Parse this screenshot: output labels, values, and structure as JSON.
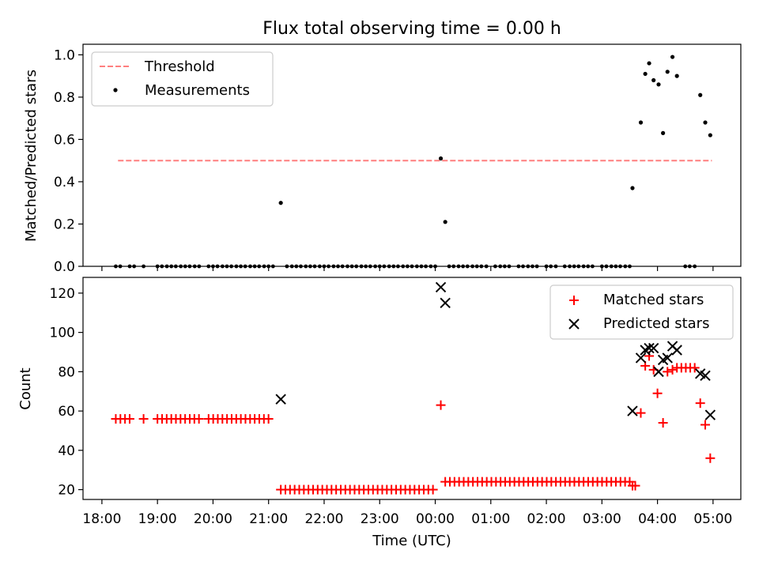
{
  "chart_data": [
    {
      "type": "scatter",
      "title": "Flux total observing time = 0.00 h",
      "ylabel": "Matched/Predicted stars",
      "xlabel": "",
      "x_unit": "hours since 18:00 UTC",
      "xlim": [
        17.66,
        29.5
      ],
      "ylim": [
        0,
        1.05
      ],
      "yticks": [
        0.0,
        0.2,
        0.4,
        0.6,
        0.8,
        1.0
      ],
      "ytick_labels": [
        "0.0",
        "0.2",
        "0.4",
        "0.6",
        "0.8",
        "1.0"
      ],
      "grid": false,
      "legend_position": "top-left",
      "threshold": {
        "name": "Threshold",
        "color": "#ff7f7f",
        "y": 0.5,
        "x": [
          18.29,
          28.98
        ]
      },
      "measurements": {
        "name": "Measurements",
        "color": "#000000",
        "zeros_x": [
          18.25,
          18.33,
          18.5,
          18.58,
          18.75,
          19.0,
          19.08,
          19.17,
          19.25,
          19.33,
          19.42,
          19.5,
          19.58,
          19.67,
          19.75,
          19.92,
          20.0,
          20.08,
          20.17,
          20.25,
          20.33,
          20.42,
          20.5,
          20.58,
          20.67,
          20.75,
          20.83,
          20.92,
          21.0,
          21.08,
          21.33,
          21.42,
          21.5,
          21.58,
          21.67,
          21.75,
          21.83,
          21.92,
          22.0,
          22.08,
          22.17,
          22.25,
          22.33,
          22.42,
          22.5,
          22.58,
          22.67,
          22.75,
          22.83,
          22.92,
          23.0,
          23.08,
          23.17,
          23.25,
          23.33,
          23.42,
          23.5,
          23.58,
          23.67,
          23.75,
          23.83,
          23.92,
          24.0,
          24.25,
          24.33,
          24.42,
          24.5,
          24.58,
          24.67,
          24.75,
          24.83,
          24.92,
          25.08,
          25.17,
          25.25,
          25.33,
          25.5,
          25.58,
          25.67,
          25.75,
          25.83,
          26.0,
          26.08,
          26.17,
          26.33,
          26.42,
          26.5,
          26.58,
          26.67,
          26.75,
          26.83,
          27.0,
          27.08,
          27.17,
          27.25,
          27.33,
          27.42,
          27.5,
          28.5,
          28.58,
          28.67
        ],
        "points": [
          {
            "x": 21.22,
            "y": 0.3
          },
          {
            "x": 24.1,
            "y": 0.51
          },
          {
            "x": 24.18,
            "y": 0.21
          },
          {
            "x": 27.55,
            "y": 0.37
          },
          {
            "x": 27.7,
            "y": 0.68
          },
          {
            "x": 27.78,
            "y": 0.91
          },
          {
            "x": 27.85,
            "y": 0.96
          },
          {
            "x": 27.93,
            "y": 0.88
          },
          {
            "x": 28.02,
            "y": 0.86
          },
          {
            "x": 28.1,
            "y": 0.63
          },
          {
            "x": 28.18,
            "y": 0.92
          },
          {
            "x": 28.27,
            "y": 0.99
          },
          {
            "x": 28.35,
            "y": 0.9
          },
          {
            "x": 28.77,
            "y": 0.81
          },
          {
            "x": 28.86,
            "y": 0.68
          },
          {
            "x": 28.95,
            "y": 0.62
          }
        ]
      }
    },
    {
      "type": "scatter",
      "title": "",
      "ylabel": "Count",
      "xlabel": "Time (UTC)",
      "x_unit": "hours since 18:00 UTC",
      "xlim": [
        17.66,
        29.5
      ],
      "ylim": [
        15,
        128
      ],
      "yticks": [
        20,
        40,
        60,
        80,
        100,
        120
      ],
      "ytick_labels": [
        "20",
        "40",
        "60",
        "80",
        "100",
        "120"
      ],
      "xticks": [
        18,
        19,
        20,
        21,
        22,
        23,
        24,
        25,
        26,
        27,
        28,
        29
      ],
      "xtick_labels": [
        "18:00",
        "19:00",
        "20:00",
        "21:00",
        "22:00",
        "23:00",
        "00:00",
        "01:00",
        "02:00",
        "03:00",
        "04:00",
        "05:00"
      ],
      "grid": false,
      "legend_position": "top-right",
      "series": [
        {
          "name": "Matched stars",
          "color": "#ff0000",
          "marker": "plus",
          "runs": [
            {
              "from": 18.25,
              "to": 18.5,
              "step": 0.083,
              "y": 56
            },
            {
              "from": 18.75,
              "to": 18.75,
              "step": 0.083,
              "y": 56
            },
            {
              "from": 19.0,
              "to": 19.75,
              "step": 0.083,
              "y": 56
            },
            {
              "from": 19.92,
              "to": 21.08,
              "step": 0.083,
              "y": 56
            },
            {
              "from": 21.22,
              "to": 24.0,
              "step": 0.083,
              "y": 20
            },
            {
              "from": 24.18,
              "to": 27.5,
              "step": 0.083,
              "y": 24
            },
            {
              "from": 27.55,
              "to": 27.6,
              "step": 0.05,
              "y": 22
            }
          ],
          "points": [
            {
              "x": 24.1,
              "y": 63
            },
            {
              "x": 27.7,
              "y": 59
            },
            {
              "x": 27.78,
              "y": 83
            },
            {
              "x": 27.85,
              "y": 88
            },
            {
              "x": 27.93,
              "y": 81
            },
            {
              "x": 28.0,
              "y": 69
            },
            {
              "x": 28.1,
              "y": 54
            },
            {
              "x": 28.18,
              "y": 80
            },
            {
              "x": 28.27,
              "y": 81
            },
            {
              "x": 28.35,
              "y": 82
            },
            {
              "x": 28.43,
              "y": 82
            },
            {
              "x": 28.51,
              "y": 82
            },
            {
              "x": 28.59,
              "y": 82
            },
            {
              "x": 28.67,
              "y": 82
            },
            {
              "x": 28.77,
              "y": 64
            },
            {
              "x": 28.86,
              "y": 53
            },
            {
              "x": 28.95,
              "y": 36
            }
          ]
        },
        {
          "name": "Predicted stars",
          "color": "#000000",
          "marker": "x",
          "runs": [],
          "points": [
            {
              "x": 21.22,
              "y": 66
            },
            {
              "x": 24.1,
              "y": 123
            },
            {
              "x": 24.18,
              "y": 115
            },
            {
              "x": 27.55,
              "y": 60
            },
            {
              "x": 27.7,
              "y": 87
            },
            {
              "x": 27.78,
              "y": 91
            },
            {
              "x": 27.85,
              "y": 92
            },
            {
              "x": 27.93,
              "y": 92
            },
            {
              "x": 28.02,
              "y": 80
            },
            {
              "x": 28.1,
              "y": 86
            },
            {
              "x": 28.18,
              "y": 87
            },
            {
              "x": 28.27,
              "y": 93
            },
            {
              "x": 28.35,
              "y": 91
            },
            {
              "x": 28.77,
              "y": 79
            },
            {
              "x": 28.86,
              "y": 78
            },
            {
              "x": 28.95,
              "y": 58
            }
          ]
        }
      ]
    }
  ]
}
